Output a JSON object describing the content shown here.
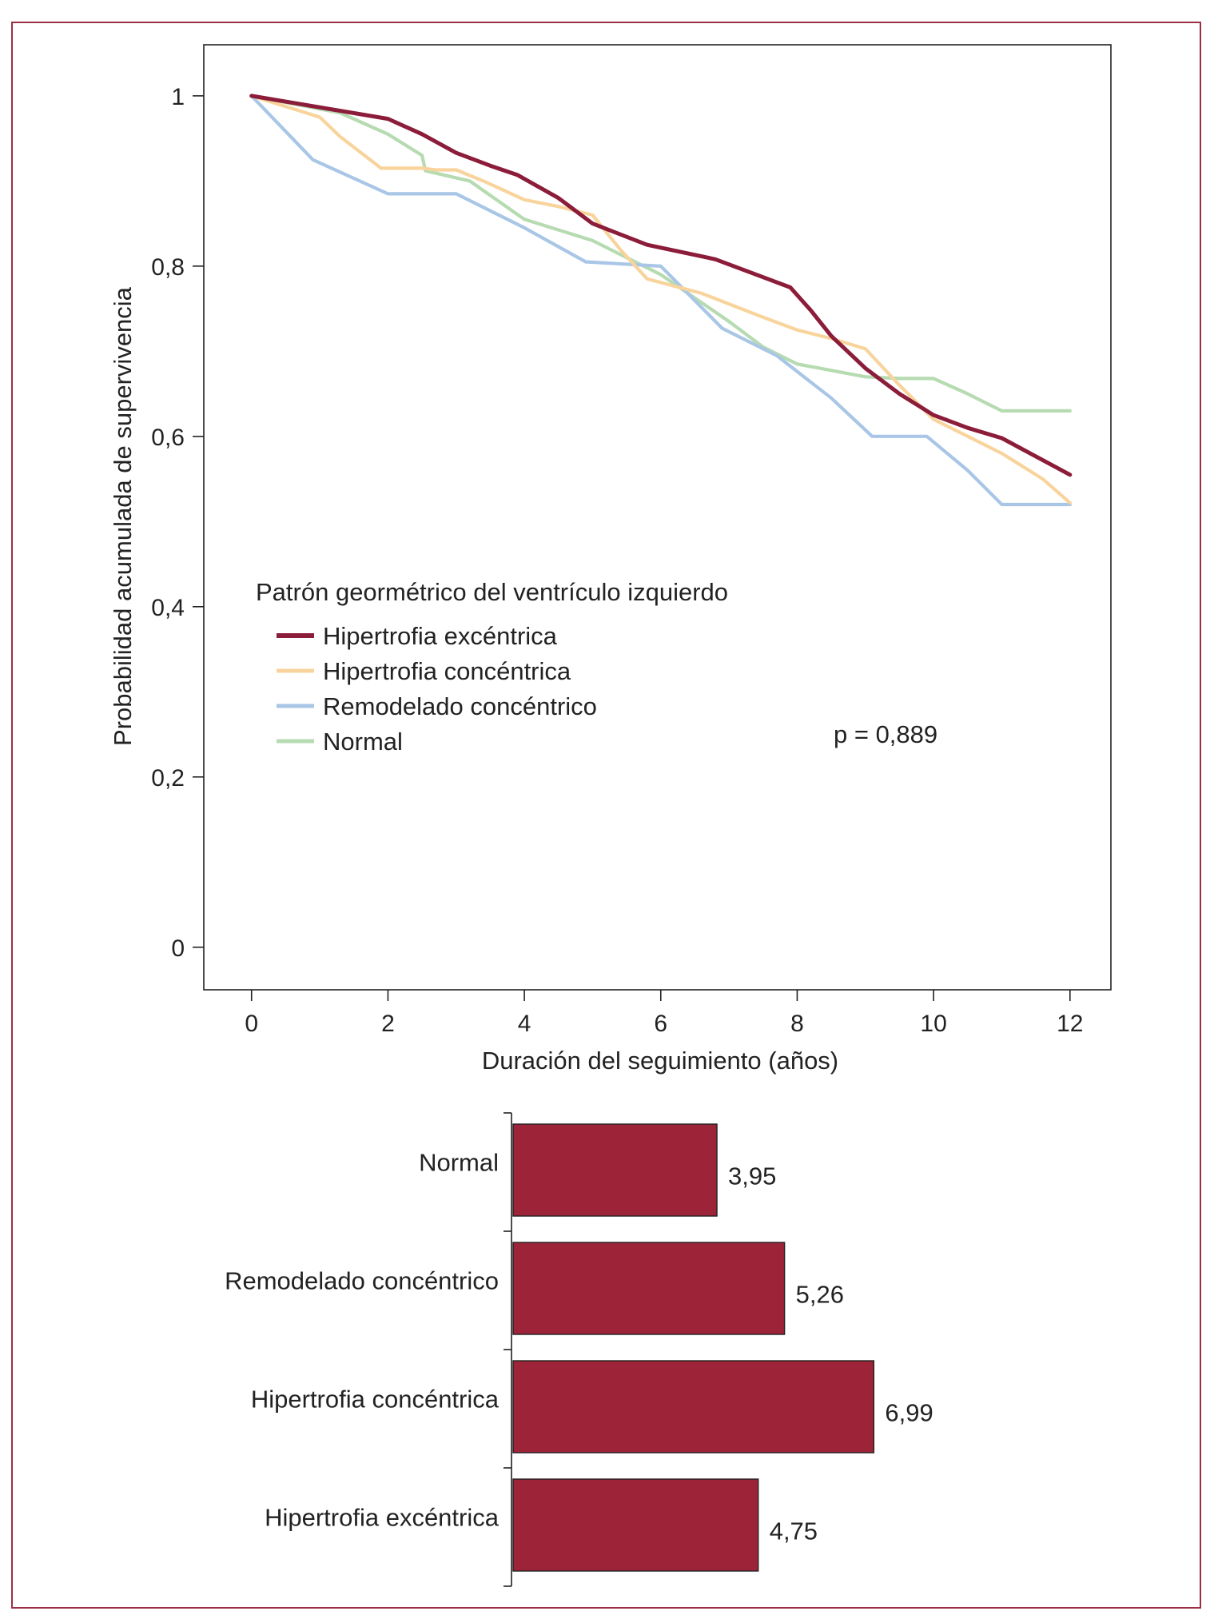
{
  "chart_data": [
    {
      "type": "line",
      "xlabel": "Duración del seguimiento (años)",
      "ylabel": "Probabilidad acumulada de supervivencia",
      "xlim": [
        -0.7,
        12.6
      ],
      "ylim": [
        -0.05,
        1.06
      ],
      "xticks": [
        0,
        2,
        4,
        6,
        8,
        10,
        12
      ],
      "yticks": [
        0,
        0.2,
        0.4,
        0.6,
        0.8,
        1
      ],
      "ytick_labels": [
        "0",
        "0,2",
        "0,4",
        "0,6",
        "0,8",
        "1"
      ],
      "legend_title": "Patrón geormétrico del ventrículo izquierdo",
      "annotation": "p = 0,889",
      "series": [
        {
          "name": "Hipertrofia excéntrica",
          "color": "#8c1d3a",
          "x": [
            0,
            2,
            2.5,
            3,
            3.5,
            3.9,
            4.5,
            5,
            5.8,
            6.8,
            7.5,
            7.9,
            8.2,
            8.5,
            9,
            9.5,
            10,
            10.5,
            11,
            12
          ],
          "y": [
            1,
            0.973,
            0.955,
            0.933,
            0.918,
            0.907,
            0.88,
            0.85,
            0.825,
            0.808,
            0.787,
            0.775,
            0.748,
            0.718,
            0.68,
            0.65,
            0.625,
            0.61,
            0.598,
            0.555
          ]
        },
        {
          "name": "Hipertrofia concéntrica",
          "color": "#f8d49c",
          "x": [
            0,
            1,
            1.3,
            1.9,
            2.5,
            2.7,
            3.0,
            3.4,
            4,
            4.5,
            5,
            5.4,
            5.8,
            6.6,
            7.5,
            8,
            8.5,
            9,
            9.5,
            10,
            10.5,
            11,
            11.6,
            12
          ],
          "y": [
            1,
            0.975,
            0.952,
            0.915,
            0.915,
            0.913,
            0.913,
            0.9,
            0.878,
            0.87,
            0.86,
            0.82,
            0.785,
            0.768,
            0.74,
            0.725,
            0.715,
            0.703,
            0.66,
            0.62,
            0.6,
            0.58,
            0.55,
            0.522
          ]
        },
        {
          "name": "Remodelado concéntrico",
          "color": "#a9c6e6",
          "x": [
            0,
            0.9,
            2,
            3,
            4,
            4.9,
            6,
            6.9,
            7.7,
            8.5,
            9.1,
            9.9,
            10.5,
            11,
            12
          ],
          "y": [
            1,
            0.925,
            0.885,
            0.885,
            0.845,
            0.805,
            0.8,
            0.727,
            0.695,
            0.645,
            0.6,
            0.6,
            0.56,
            0.52,
            0.52
          ]
        },
        {
          "name": "Normal",
          "color": "#b6dbb1",
          "x": [
            0,
            1.3,
            2,
            2.5,
            2.55,
            3.2,
            4,
            5,
            6,
            7,
            7.5,
            8,
            9,
            9.5,
            10,
            10.5,
            11,
            12
          ],
          "y": [
            1,
            0.98,
            0.955,
            0.93,
            0.912,
            0.9,
            0.855,
            0.83,
            0.79,
            0.735,
            0.705,
            0.685,
            0.67,
            0.668,
            0.668,
            0.65,
            0.63,
            0.63
          ]
        }
      ]
    },
    {
      "type": "bar",
      "orientation": "horizontal",
      "color": "#9c2338",
      "xlim": [
        0,
        10.5
      ],
      "categories": [
        "Normal",
        "Remodelado concéntrico",
        "Hipertrofia concéntrica",
        "Hipertrofia excéntrica"
      ],
      "values": [
        3.95,
        5.26,
        6.99,
        4.75
      ],
      "value_labels": [
        "3,95",
        "5,26",
        "6,99",
        "4,75"
      ]
    }
  ],
  "frame_color": "#9c2f45"
}
